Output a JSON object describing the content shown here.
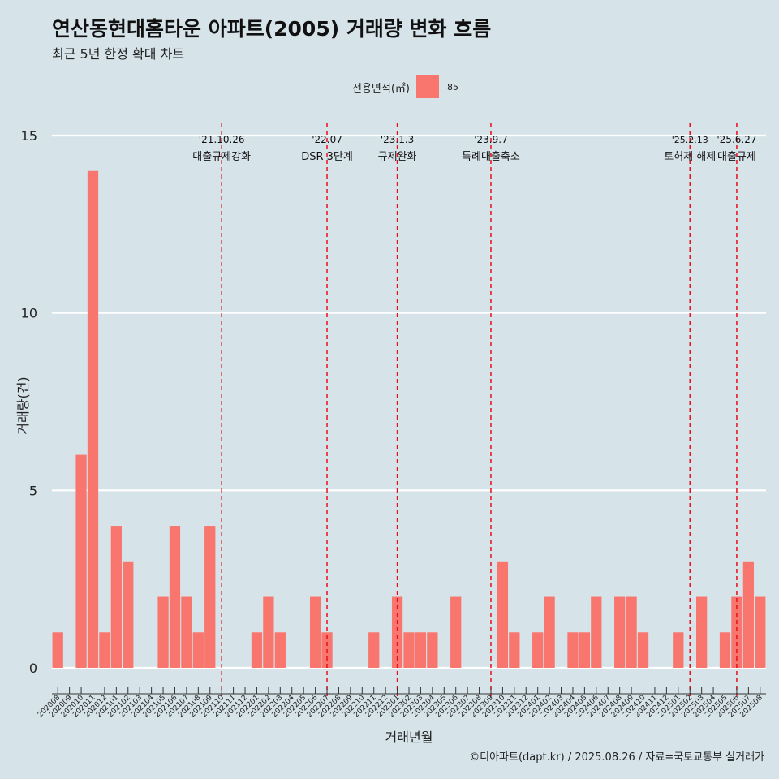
{
  "page": {
    "title": "연산동현대홈타운 아파트(2005) 거래량 변화 흐름",
    "subtitle": "최근 5년 한정 확대 차트",
    "caption": "©디아파트(dapt.kr) / 2025.08.26 / 자료=국토교통부 실거래가"
  },
  "legend": {
    "title": "전용면적(㎡)",
    "label": "85",
    "color": "#f8766d"
  },
  "colors": {
    "bar": "#f8766d",
    "background": "#d6e4ea",
    "grid": "#ffffff",
    "event_line": "#e8101c"
  },
  "chart_data": {
    "type": "bar",
    "xlabel": "거래년월",
    "ylabel": "거래량(건)",
    "ylim": [
      0,
      15
    ],
    "yticks": [
      0,
      5,
      10,
      15
    ],
    "grid": true,
    "legend_position": "top",
    "categories": [
      "202008",
      "202009",
      "202010",
      "202011",
      "202012",
      "202101",
      "202102",
      "202103",
      "202104",
      "202105",
      "202106",
      "202107",
      "202108",
      "202109",
      "202110",
      "202111",
      "202112",
      "202201",
      "202202",
      "202203",
      "202204",
      "202205",
      "202206",
      "202207",
      "202208",
      "202209",
      "202210",
      "202211",
      "202212",
      "202301",
      "202302",
      "202303",
      "202304",
      "202305",
      "202306",
      "202307",
      "202308",
      "202309",
      "202310",
      "202311",
      "202312",
      "202401",
      "202402",
      "202403",
      "202404",
      "202405",
      "202406",
      "202407",
      "202408",
      "202409",
      "202410",
      "202411",
      "202412",
      "202501",
      "202502",
      "202503",
      "202504",
      "202505",
      "202506",
      "202507",
      "202508"
    ],
    "series": [
      {
        "name": "85",
        "values": [
          1,
          0,
          6,
          14,
          1,
          4,
          3,
          0,
          0,
          2,
          4,
          2,
          1,
          4,
          0,
          0,
          0,
          1,
          2,
          1,
          0,
          0,
          2,
          1,
          0,
          0,
          0,
          1,
          0,
          2,
          1,
          1,
          1,
          0,
          2,
          0,
          0,
          0,
          3,
          1,
          0,
          1,
          2,
          0,
          1,
          1,
          2,
          0,
          2,
          2,
          1,
          0,
          0,
          1,
          0,
          2,
          0,
          1,
          2,
          3,
          2
        ]
      }
    ],
    "events": [
      {
        "date": "'21.10.26",
        "label": "대출규제강화",
        "category": "202110"
      },
      {
        "date": "'22.07",
        "label": "DSR 3단계",
        "category": "202207"
      },
      {
        "date": "'23.1.3",
        "label": "규제완화",
        "category": "202301"
      },
      {
        "date": "'23.9.7",
        "label": "특례대출축소",
        "category": "202309"
      },
      {
        "date": "'25.2.13",
        "label": "토허제 해제",
        "category": "202502"
      },
      {
        "date": "'25.6.27",
        "label": "대출규제",
        "category": "202506"
      }
    ]
  }
}
